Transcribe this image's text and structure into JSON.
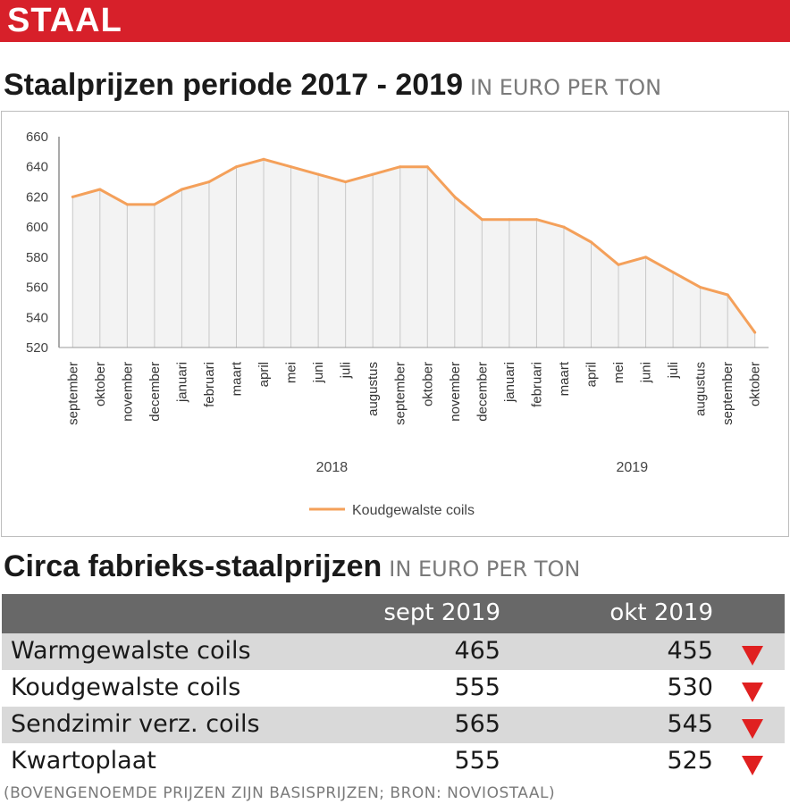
{
  "banner": {
    "label": "STAAL"
  },
  "chart_heading": {
    "title": "Staalprijzen periode 2017 - 2019",
    "unit": "IN EURO PER TON"
  },
  "table_heading": {
    "title": "Circa fabrieks-staalprijzen",
    "unit": "IN EURO PER TON"
  },
  "colors": {
    "banner": "#d7202a",
    "line": "#f4a05a",
    "table_header": "#686868",
    "row_shade": "#d9d9d9",
    "down_arrow": "#e02020"
  },
  "chart_data": {
    "type": "line",
    "title": "",
    "xlabel": "",
    "ylabel": "",
    "ylim": [
      520,
      660
    ],
    "yticks": [
      520,
      540,
      560,
      580,
      600,
      620,
      640,
      660
    ],
    "grid": "vertical lines at each category",
    "legend_position": "bottom",
    "categories": [
      "september",
      "oktober",
      "november",
      "december",
      "januari",
      "februari",
      "maart",
      "april",
      "mei",
      "juni",
      "juli",
      "augustus",
      "september",
      "oktober",
      "november",
      "december",
      "januari",
      "februari",
      "maart",
      "april",
      "mei",
      "juni",
      "juli",
      "augustus",
      "september",
      "oktober"
    ],
    "year_groups": [
      {
        "label": "2018",
        "from": 4,
        "to": 15
      },
      {
        "label": "2019",
        "from": 16,
        "to": 25
      }
    ],
    "series": [
      {
        "name": "Koudgewalste coils",
        "color": "#f4a05a",
        "values": [
          620,
          625,
          615,
          615,
          625,
          630,
          640,
          645,
          640,
          635,
          630,
          635,
          640,
          640,
          620,
          605,
          605,
          605,
          600,
          590,
          575,
          580,
          570,
          560,
          555,
          530
        ]
      }
    ]
  },
  "table": {
    "headers": [
      "",
      "sept 2019",
      "okt 2019"
    ],
    "rows": [
      {
        "name": "Warmgewalste coils",
        "sept": "465",
        "okt": "455",
        "trend": "down"
      },
      {
        "name": "Koudgewalste coils",
        "sept": "555",
        "okt": "530",
        "trend": "down"
      },
      {
        "name": "Sendzimir verz. coils",
        "sept": "565",
        "okt": "545",
        "trend": "down"
      },
      {
        "name": "Kwartoplaat",
        "sept": "555",
        "okt": "525",
        "trend": "down"
      }
    ]
  },
  "footnote": "(BOVENGENOEMDE PRIJZEN ZIJN BASISPRIJZEN; BRON: NOVIOSTAAL)"
}
